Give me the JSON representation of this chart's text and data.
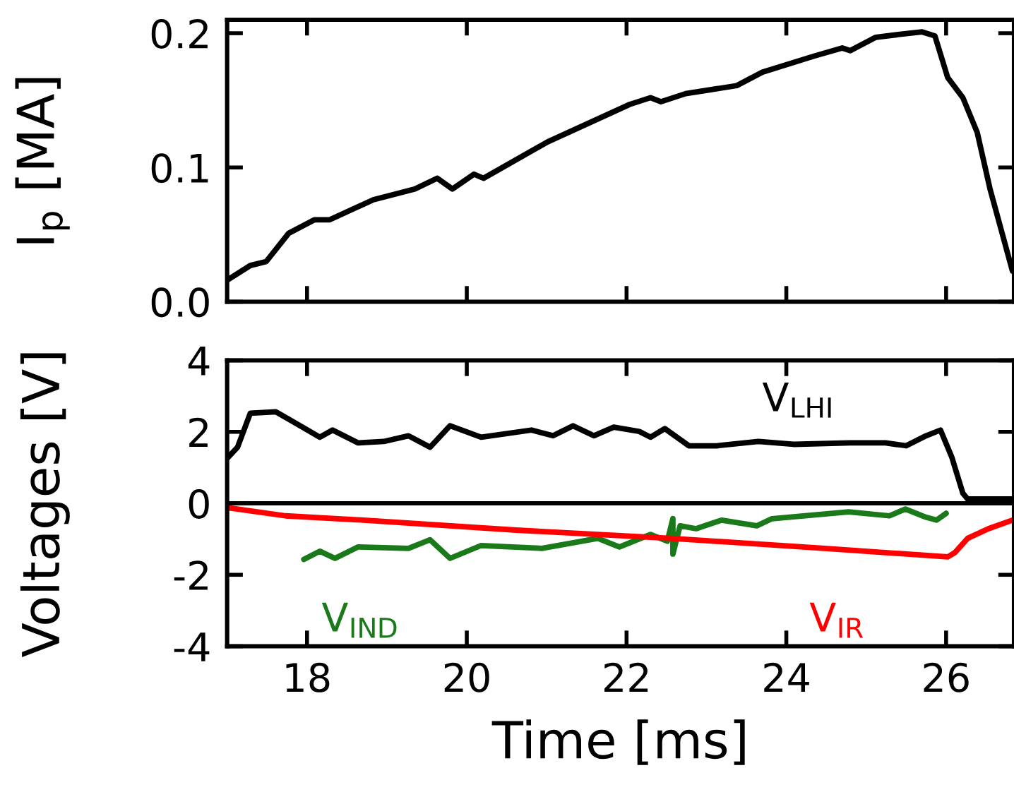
{
  "chart_data": [
    {
      "type": "line",
      "ylabel": "I$_{p}$ [MA]",
      "xlim": [
        17,
        26.85
      ],
      "xticks": [
        18,
        20,
        22,
        24,
        26
      ],
      "ylim": [
        0,
        0.21
      ],
      "yticks": [
        {
          "value": 0,
          "label": "0.0"
        },
        0.1,
        0.2
      ],
      "tick_labels": "y",
      "grid": false,
      "series": [
        {
          "color": "#000000",
          "x": [
            17.0,
            17.29,
            17.49,
            17.77,
            18.09,
            18.28,
            18.83,
            19.35,
            19.63,
            19.82,
            20.09,
            20.21,
            21.01,
            22.04,
            22.3,
            22.43,
            22.74,
            23.38,
            23.7,
            24.35,
            24.7,
            24.8,
            25.12,
            25.4,
            25.7,
            25.86,
            26.02,
            26.21,
            26.39,
            26.55,
            26.83
          ],
          "values": [
            0.016,
            0.027,
            0.03,
            0.051,
            0.061,
            0.061,
            0.076,
            0.084,
            0.092,
            0.084,
            0.095,
            0.092,
            0.119,
            0.147,
            0.152,
            0.149,
            0.155,
            0.161,
            0.171,
            0.183,
            0.189,
            0.187,
            0.197,
            0.199,
            0.201,
            0.198,
            0.167,
            0.152,
            0.126,
            0.084,
            0.023
          ]
        }
      ]
    },
    {
      "type": "line",
      "xlabel": "Time [ms]",
      "ylabel": "Voltages [V]",
      "xlim": [
        17,
        26.85
      ],
      "xticks": [
        18,
        20,
        22,
        24,
        26
      ],
      "ylim": [
        -4,
        4
      ],
      "yticks": [
        -4,
        -2,
        0,
        2,
        4
      ],
      "grid": false,
      "ref_lines": [
        {
          "axis": "y",
          "value": 0,
          "color": "#000000"
        }
      ],
      "series": [
        {
          "name": "V$_{LHI}$",
          "color": "#000000",
          "x": [
            17.0,
            17.13,
            17.29,
            17.61,
            17.89,
            18.16,
            18.32,
            18.64,
            18.96,
            19.27,
            19.54,
            19.79,
            20.18,
            20.81,
            21.08,
            21.33,
            21.59,
            21.84,
            22.16,
            22.3,
            22.48,
            22.78,
            23.13,
            23.65,
            24.09,
            24.8,
            25.24,
            25.5,
            25.75,
            25.93,
            26.07,
            26.21,
            26.27,
            26.83
          ],
          "values": [
            1.26,
            1.57,
            2.52,
            2.56,
            2.2,
            1.85,
            2.05,
            1.69,
            1.73,
            1.89,
            1.57,
            2.17,
            1.85,
            2.05,
            1.89,
            2.17,
            1.89,
            2.13,
            2.01,
            1.85,
            2.09,
            1.61,
            1.61,
            1.73,
            1.65,
            1.69,
            1.69,
            1.61,
            1.89,
            2.05,
            1.3,
            0.28,
            0.12,
            0.12
          ]
        },
        {
          "name": "V$_{IND}$",
          "color": "#1a7a1a",
          "x": [
            17.96,
            18.16,
            18.35,
            18.64,
            19.27,
            19.54,
            19.79,
            20.18,
            20.94,
            21.64,
            21.91,
            22.3,
            22.51,
            22.58,
            22.58,
            22.67,
            22.87,
            23.19,
            23.63,
            23.82,
            24.78,
            25.29,
            25.49,
            25.75,
            25.88,
            26.0
          ],
          "values": [
            -1.57,
            -1.34,
            -1.54,
            -1.22,
            -1.26,
            -1.02,
            -1.54,
            -1.18,
            -1.26,
            -0.98,
            -1.22,
            -0.87,
            -1.06,
            -0.43,
            -1.42,
            -0.63,
            -0.71,
            -0.47,
            -0.63,
            -0.43,
            -0.24,
            -0.35,
            -0.16,
            -0.39,
            -0.47,
            -0.28
          ]
        },
        {
          "name": "V$_{IR}$",
          "color": "#ff0000",
          "x": [
            17.0,
            17.73,
            18.71,
            20.62,
            22.55,
            24.48,
            26.02,
            26.11,
            26.27,
            26.53,
            26.83
          ],
          "values": [
            -0.12,
            -0.35,
            -0.47,
            -0.75,
            -0.98,
            -1.26,
            -1.5,
            -1.38,
            -0.98,
            -0.71,
            -0.47
          ]
        }
      ]
    }
  ]
}
